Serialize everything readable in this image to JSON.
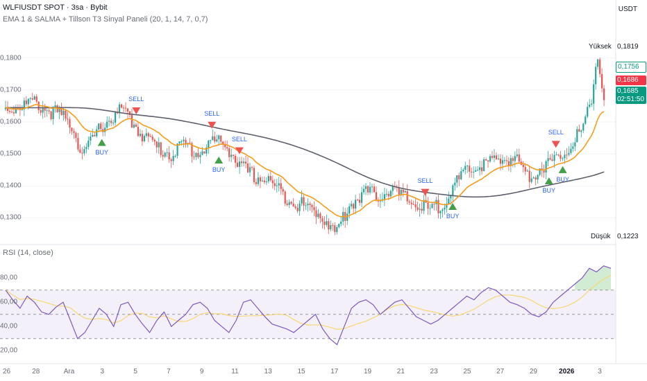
{
  "header": {
    "symbol_line": "WLFIUSDT SPOT · 3sa · Bybit",
    "indicator_line": "EMA 1 & SALMA + Tillson T3 Sinyal Paneli (20, 1, 14, 7, 0,7)",
    "currency": "USDT"
  },
  "price_tags": {
    "high_label": "Yüksek",
    "high_value": "0,1819",
    "tag_outline": "0,1756",
    "tag_red": "0,1686",
    "tag_green": "0,1685",
    "countdown": "02:51:50",
    "low_label": "Düşük",
    "low_value": "0,1223"
  },
  "rsi": {
    "title": "RSI (14, close)"
  },
  "colors": {
    "up": "#26a69a",
    "down": "#ef5350",
    "ema": "#f59c1a",
    "t3": "#5d606b",
    "rsi": "#7e57c2",
    "rsi_ma": "#f7d774",
    "buy": "#43a047",
    "sell": "#ef5350",
    "signal_text": "#2962ff"
  },
  "chart_data": [
    {
      "type": "candlestick",
      "ylim": [
        0.1223,
        0.1819
      ],
      "y_ticks": [
        "0,1800",
        "0,1700",
        "0,1600",
        "0,1500",
        "0,1400",
        "0,1300"
      ],
      "x_ticks": [
        "26",
        "28",
        "Ara",
        "3",
        "5",
        "7",
        "9",
        "11",
        "13",
        "15",
        "17",
        "19",
        "21",
        "23",
        "25",
        "27",
        "29",
        "2026",
        "3"
      ],
      "close_path": [
        [
          0,
          0.164
        ],
        [
          4,
          0.166
        ],
        [
          8,
          0.162
        ],
        [
          10,
          0.158
        ],
        [
          11,
          0.15
        ],
        [
          12,
          0.152
        ],
        [
          14,
          0.159
        ],
        [
          16,
          0.162
        ],
        [
          17,
          0.164
        ],
        [
          18,
          0.161
        ],
        [
          20,
          0.156
        ],
        [
          22,
          0.152
        ],
        [
          24,
          0.15
        ],
        [
          26,
          0.153
        ],
        [
          28,
          0.15
        ],
        [
          30,
          0.154
        ],
        [
          32,
          0.153
        ],
        [
          33,
          0.15
        ],
        [
          34,
          0.146
        ],
        [
          36,
          0.143
        ],
        [
          38,
          0.142
        ],
        [
          40,
          0.138
        ],
        [
          42,
          0.135
        ],
        [
          44,
          0.133
        ],
        [
          46,
          0.131
        ],
        [
          48,
          0.125
        ],
        [
          50,
          0.134
        ],
        [
          52,
          0.138
        ],
        [
          54,
          0.137
        ],
        [
          56,
          0.139
        ],
        [
          58,
          0.136
        ],
        [
          60,
          0.134
        ],
        [
          62,
          0.132
        ],
        [
          64,
          0.136
        ],
        [
          66,
          0.142
        ],
        [
          68,
          0.146
        ],
        [
          70,
          0.147
        ],
        [
          72,
          0.148
        ],
        [
          74,
          0.149
        ],
        [
          76,
          0.143
        ],
        [
          78,
          0.146
        ],
        [
          80,
          0.148
        ],
        [
          82,
          0.153
        ],
        [
          84,
          0.158
        ],
        [
          85,
          0.165
        ],
        [
          86,
          0.181
        ],
        [
          87,
          0.1686
        ]
      ],
      "signals": [
        {
          "label": "BUY",
          "index": 14
        },
        {
          "label": "SELL",
          "index": 19
        },
        {
          "label": "SELL",
          "index": 30
        },
        {
          "label": "BUY",
          "index": 31
        },
        {
          "label": "SELL",
          "index": 34
        },
        {
          "label": "SELL",
          "index": 61
        },
        {
          "label": "BUY",
          "index": 65
        },
        {
          "label": "BUY",
          "index": 79
        },
        {
          "label": "SELL",
          "index": 80
        },
        {
          "label": "BUY",
          "index": 81
        }
      ]
    },
    {
      "type": "line",
      "title": "RSI (14, close)",
      "ylim": [
        15,
        95
      ],
      "y_ticks": [
        "80,00",
        "60,00",
        "40,00",
        "20,00"
      ],
      "bands": [
        30,
        50,
        70
      ],
      "values": [
        70,
        62,
        55,
        65,
        60,
        52,
        50,
        56,
        60,
        45,
        30,
        35,
        45,
        55,
        50,
        40,
        58,
        60,
        50,
        42,
        35,
        45,
        52,
        40,
        45,
        50,
        58,
        60,
        55,
        45,
        40,
        35,
        45,
        60,
        62,
        55,
        48,
        42,
        40,
        38,
        35,
        40,
        45,
        50,
        38,
        30,
        25,
        40,
        55,
        60,
        62,
        58,
        50,
        55,
        60,
        62,
        55,
        48,
        45,
        42,
        45,
        50,
        55,
        60,
        65,
        62,
        68,
        72,
        70,
        65,
        60,
        58,
        55,
        50,
        48,
        52,
        60,
        65,
        70,
        75,
        80,
        88,
        85,
        90,
        88
      ]
    }
  ]
}
